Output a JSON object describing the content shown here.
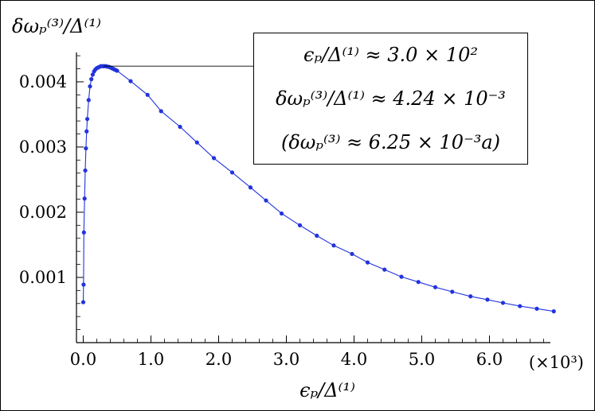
{
  "chart_data": {
    "type": "line",
    "title": "",
    "xlabel": "ϵₚ/Δ⁽¹⁾",
    "ylabel": "δωₚ⁽³⁾/Δ⁽¹⁾",
    "x_scale_note": "(×10³)",
    "xlim": [
      -0.1,
      6.9
    ],
    "ylim": [
      0.0,
      0.00445
    ],
    "x_ticks": [
      0.0,
      1.0,
      2.0,
      3.0,
      4.0,
      5.0,
      6.0
    ],
    "x_tick_labels": [
      "0.0",
      "1.0",
      "2.0",
      "3.0",
      "4.0",
      "5.0",
      "6.0"
    ],
    "y_ticks": [
      0.001,
      0.002,
      0.003,
      0.004
    ],
    "y_tick_labels": [
      "0.001",
      "0.002",
      "0.003",
      "0.004"
    ],
    "grid": false,
    "series": [
      {
        "color": "#2233dd",
        "points": [
          [
            0.0,
            0.00062
          ],
          [
            0.005,
            0.00089
          ],
          [
            0.01,
            0.00169
          ],
          [
            0.02,
            0.00221
          ],
          [
            0.03,
            0.00264
          ],
          [
            0.04,
            0.00298
          ],
          [
            0.05,
            0.00324
          ],
          [
            0.06,
            0.00343
          ],
          [
            0.08,
            0.00372
          ],
          [
            0.1,
            0.00393
          ],
          [
            0.12,
            0.00404
          ],
          [
            0.14,
            0.00411
          ],
          [
            0.16,
            0.00416
          ],
          [
            0.18,
            0.00419
          ],
          [
            0.2,
            0.00421
          ],
          [
            0.22,
            0.00422
          ],
          [
            0.24,
            0.00423
          ],
          [
            0.26,
            0.00424
          ],
          [
            0.28,
            0.00424
          ],
          [
            0.3,
            0.00424
          ],
          [
            0.32,
            0.00424
          ],
          [
            0.34,
            0.00424
          ],
          [
            0.36,
            0.00423
          ],
          [
            0.38,
            0.00423
          ],
          [
            0.4,
            0.00422
          ],
          [
            0.42,
            0.00421
          ],
          [
            0.44,
            0.0042
          ],
          [
            0.46,
            0.00419
          ],
          [
            0.48,
            0.00418
          ],
          [
            0.5,
            0.00417
          ],
          [
            0.7,
            0.00401
          ],
          [
            0.95,
            0.0038
          ],
          [
            1.15,
            0.00355
          ],
          [
            1.43,
            0.00331
          ],
          [
            1.68,
            0.00307
          ],
          [
            1.93,
            0.00283
          ],
          [
            2.2,
            0.00261
          ],
          [
            2.47,
            0.00238
          ],
          [
            2.7,
            0.00218
          ],
          [
            2.93,
            0.00198
          ],
          [
            3.2,
            0.0018
          ],
          [
            3.45,
            0.00164
          ],
          [
            3.7,
            0.00149
          ],
          [
            3.97,
            0.00136
          ],
          [
            4.2,
            0.00123
          ],
          [
            4.45,
            0.00112
          ],
          [
            4.7,
            0.00101
          ],
          [
            4.95,
            0.00093
          ],
          [
            5.2,
            0.00085
          ],
          [
            5.45,
            0.00078
          ],
          [
            5.72,
            0.00071
          ],
          [
            5.97,
            0.00066
          ],
          [
            6.2,
            0.00061
          ],
          [
            6.45,
            0.00056
          ],
          [
            6.7,
            0.00052
          ],
          [
            6.95,
            0.00048
          ]
        ]
      }
    ],
    "annotation": {
      "lines": [
        "ϵₚ/Δ⁽¹⁾ ≈ 3.0 × 10²",
        "δωₚ⁽³⁾/Δ⁽¹⁾ ≈ 4.24 × 10⁻³",
        "(δωₚ⁽³⁾ ≈ 6.25 × 10⁻³a)"
      ],
      "points_to": [
        0.3,
        0.00424
      ]
    }
  }
}
